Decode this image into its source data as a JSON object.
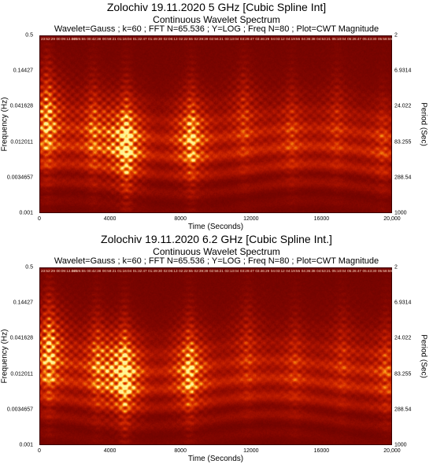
{
  "chart_data": [
    {
      "type": "heatmap",
      "title": "Zolochiv 19.11.2020 5 GHz [Cubic Spline Int]",
      "subtitle": "Continuous Wavelet Spectrum",
      "subtitle2": "Wavelet=Gauss ; k=60 ; FFT N=65.536 ; Y=LOG ; Freq N=80 ; Plot=CWT Magnitude",
      "xlabel": "Time (Seconds)",
      "ylabel": "Frequency (Hz)",
      "ylabel_right": "Period (Sec)",
      "xlim": [
        0,
        20000
      ],
      "ylim": [
        0.001,
        0.5
      ],
      "yscale": "log",
      "x_ticks": [
        "0",
        "4000",
        "8000",
        "12000",
        "16000",
        "20,000"
      ],
      "y_ticks": [
        "0.5",
        "0.14427",
        "0.041628",
        "0.012011",
        "0.0034657",
        "0.001"
      ],
      "period_ticks": [
        "2",
        "6.9314",
        "24.022",
        "83.255",
        "288.54",
        "1000"
      ],
      "timestamps": [
        "23:52:29",
        "00:09:13.015",
        "00:25:55",
        "00:42:38",
        "00:59:21",
        "01:16:04",
        "01:32:47",
        "01:49:30",
        "02:06:13",
        "02:22:55",
        "02:39:39",
        "02:56:21",
        "03:13:04",
        "03:29:47",
        "03:46:29",
        "04:03:12",
        "04:19:55",
        "04:36:38",
        "04:53:21",
        "05:10:04",
        "05:26:47",
        "05:43:30",
        "05:58:59"
      ],
      "hotspots": [
        {
          "t": 400,
          "f": 0.03,
          "intensity": 0.85
        },
        {
          "t": 4900,
          "f": 0.012,
          "intensity": 1.0
        },
        {
          "t": 3000,
          "f": 0.02,
          "intensity": 0.55
        },
        {
          "t": 8600,
          "f": 0.015,
          "intensity": 0.8
        },
        {
          "t": 11600,
          "f": 0.03,
          "intensity": 0.45
        },
        {
          "t": 14300,
          "f": 0.02,
          "intensity": 0.4
        },
        {
          "t": 16900,
          "f": 0.025,
          "intensity": 0.35
        },
        {
          "t": 19500,
          "f": 0.012,
          "intensity": 0.35
        }
      ]
    },
    {
      "type": "heatmap",
      "title": "Zolochiv 19.11.2020 6.2 GHz [Cubic Spline Int.]",
      "subtitle": "Continuous Wavelet Spectrum",
      "subtitle2": "Wavelet=Gauss ; k=60 ; FFT N=65.536 ; Y=LOG ; Freq N=80 ; Plot=CWT Magnitude",
      "xlabel": "Time (Seconds)",
      "ylabel": "Frequency (Hz)",
      "ylabel_right": "Period (Sec)",
      "xlim": [
        0,
        20000
      ],
      "ylim": [
        0.001,
        0.5
      ],
      "yscale": "log",
      "x_ticks": [
        "0",
        "4000",
        "8000",
        "12000",
        "16000",
        "20,000"
      ],
      "y_ticks": [
        "0.5",
        "0.14427",
        "0.041628",
        "0.012011",
        "0.0034657",
        "0.001"
      ],
      "period_ticks": [
        "2",
        "6.9314",
        "24.022",
        "83.255",
        "288.54",
        "1000"
      ],
      "timestamps": [
        "23:52:29",
        "00:09:13.015",
        "00:25:55",
        "00:42:38",
        "00:59:21",
        "01:16:04",
        "01:32:47",
        "01:49:30",
        "02:06:13",
        "02:22:55",
        "02:39:39",
        "02:56:21",
        "03:13:04",
        "03:29:47",
        "03:46:29",
        "04:03:12",
        "04:19:55",
        "04:36:38",
        "04:53:21",
        "05:10:04",
        "05:26:47",
        "05:43:30",
        "05:58:59"
      ],
      "hotspots": [
        {
          "t": 500,
          "f": 0.03,
          "intensity": 0.9
        },
        {
          "t": 4800,
          "f": 0.012,
          "intensity": 1.0
        },
        {
          "t": 3200,
          "f": 0.02,
          "intensity": 0.55
        },
        {
          "t": 8500,
          "f": 0.015,
          "intensity": 0.8
        },
        {
          "t": 11800,
          "f": 0.03,
          "intensity": 0.4
        },
        {
          "t": 14500,
          "f": 0.02,
          "intensity": 0.35
        },
        {
          "t": 17200,
          "f": 0.025,
          "intensity": 0.35
        },
        {
          "t": 19700,
          "f": 0.015,
          "intensity": 0.45
        }
      ]
    }
  ]
}
